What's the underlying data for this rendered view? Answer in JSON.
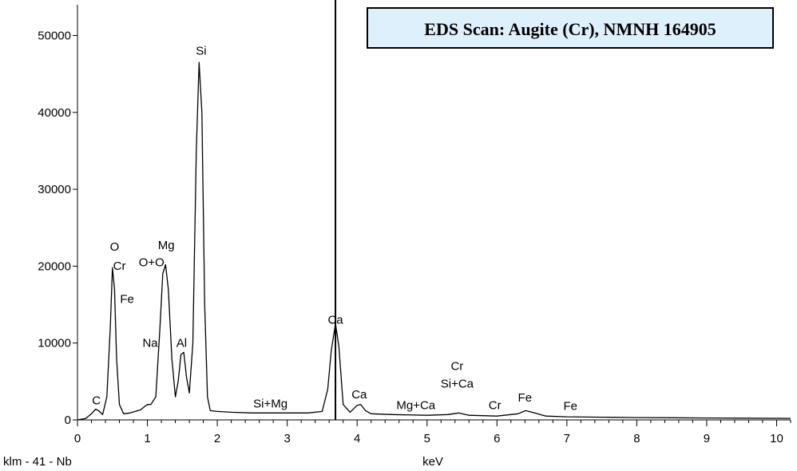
{
  "chart_data": {
    "type": "line",
    "title": "EDS Scan: Augite (Cr), NMNH 164905",
    "xlabel": "keV",
    "ylabel": "",
    "footer_label": "klm - 41 - Nb",
    "xlim": [
      0,
      10.2
    ],
    "ylim": [
      0,
      54000
    ],
    "xticks": [
      0,
      1,
      2,
      3,
      4,
      5,
      6,
      7,
      8,
      9,
      10
    ],
    "yticks": [
      0,
      10000,
      20000,
      30000,
      40000,
      50000
    ],
    "grid": false,
    "marker_keV": 3.69,
    "series": [
      {
        "x": [
          0.0,
          0.12,
          0.2,
          0.26,
          0.3,
          0.36,
          0.42,
          0.47,
          0.5,
          0.53,
          0.56,
          0.6,
          0.66,
          0.75,
          0.9,
          1.0,
          1.05,
          1.12,
          1.18,
          1.22,
          1.26,
          1.3,
          1.35,
          1.4,
          1.44,
          1.48,
          1.52,
          1.56,
          1.6,
          1.65,
          1.7,
          1.74,
          1.78,
          1.82,
          1.86,
          1.9,
          2.0,
          2.2,
          2.5,
          2.8,
          3.0,
          3.3,
          3.5,
          3.58,
          3.63,
          3.69,
          3.74,
          3.8,
          3.9,
          4.0,
          4.05,
          4.12,
          4.2,
          4.5,
          5.0,
          5.3,
          5.45,
          5.6,
          6.0,
          6.3,
          6.41,
          6.5,
          6.7,
          7.0,
          7.5,
          8.0,
          8.5,
          9.0,
          9.5,
          10.2
        ],
        "y": [
          0,
          200,
          800,
          1400,
          1200,
          700,
          3000,
          12000,
          19800,
          17000,
          8000,
          2000,
          800,
          900,
          1300,
          2000,
          2000,
          3000,
          12000,
          19000,
          20200,
          17000,
          8000,
          3000,
          5000,
          8500,
          8800,
          5500,
          3500,
          10000,
          35000,
          46500,
          40000,
          15000,
          3000,
          1200,
          1100,
          1000,
          900,
          900,
          900,
          900,
          1100,
          4000,
          9000,
          12500,
          9500,
          2000,
          1000,
          1900,
          2000,
          1200,
          800,
          700,
          600,
          700,
          900,
          600,
          500,
          800,
          1200,
          1000,
          500,
          400,
          350,
          300,
          280,
          250,
          230,
          200
        ]
      }
    ],
    "annotations": [
      {
        "text": "C",
        "x": 0.27,
        "y": 2000
      },
      {
        "text": "O",
        "x": 0.53,
        "y": 22000
      },
      {
        "text": "Cr",
        "x": 0.6,
        "y": 19500
      },
      {
        "text": "Fe",
        "x": 0.71,
        "y": 15200
      },
      {
        "text": "O+O",
        "x": 1.06,
        "y": 20000
      },
      {
        "text": "Mg",
        "x": 1.27,
        "y": 22200
      },
      {
        "text": "Na",
        "x": 1.04,
        "y": 9500
      },
      {
        "text": "Al",
        "x": 1.49,
        "y": 9500
      },
      {
        "text": "Si",
        "x": 1.77,
        "y": 47500
      },
      {
        "text": "Si+Mg",
        "x": 2.76,
        "y": 1600
      },
      {
        "text": "Ca",
        "x": 3.69,
        "y": 12500
      },
      {
        "text": "Ca",
        "x": 4.03,
        "y": 2800
      },
      {
        "text": "Mg+Ca",
        "x": 4.84,
        "y": 1400
      },
      {
        "text": "Cr",
        "x": 5.43,
        "y": 6500
      },
      {
        "text": "Si+Ca",
        "x": 5.43,
        "y": 4200
      },
      {
        "text": "Cr",
        "x": 5.97,
        "y": 1400
      },
      {
        "text": "Fe",
        "x": 6.4,
        "y": 2400
      },
      {
        "text": "Fe",
        "x": 7.05,
        "y": 1300
      }
    ]
  }
}
